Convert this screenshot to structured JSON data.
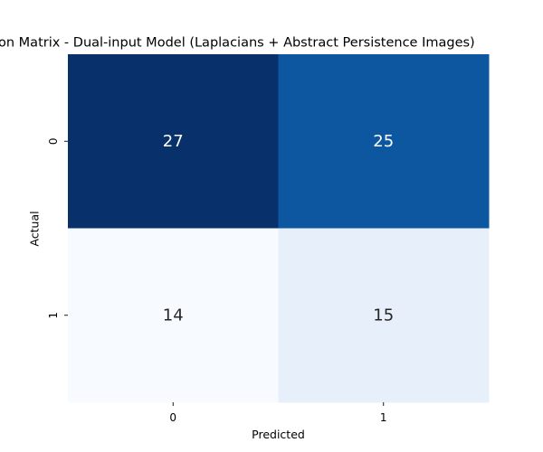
{
  "chart_data": {
    "type": "heatmap",
    "title": "on Matrix - Dual-input Model (Laplacians + Abstract Persistence Images)",
    "xlabel": "Predicted",
    "ylabel": "Actual",
    "x_categories": [
      "0",
      "1"
    ],
    "y_categories": [
      "0",
      "1"
    ],
    "values": [
      [
        27,
        25
      ],
      [
        14,
        15
      ]
    ],
    "colormap": "Blues",
    "colorbar": false,
    "cell_colors": [
      [
        "#08306b",
        "#0d57a1"
      ],
      [
        "#f7fbff",
        "#e7f0fa"
      ]
    ],
    "text_colors": [
      [
        "#ffffff",
        "#ffffff"
      ],
      [
        "#262626",
        "#262626"
      ]
    ]
  }
}
